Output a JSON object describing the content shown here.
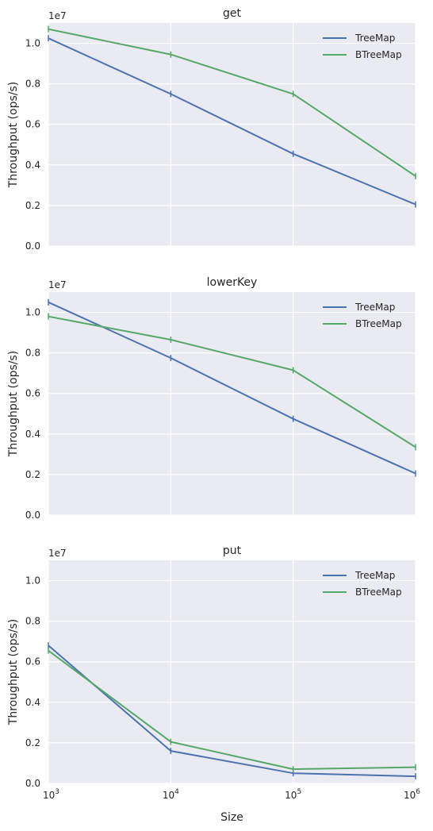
{
  "chart_data": [
    {
      "type": "line",
      "title": "get",
      "ylabel": "Throughput (ops/s)",
      "xlabel": "",
      "offset_label": "1e7",
      "x": [
        1000,
        10000,
        100000,
        1000000
      ],
      "xscale": "log",
      "ylim": [
        0,
        11000000
      ],
      "yticks": [
        0,
        2000000,
        4000000,
        6000000,
        8000000,
        10000000
      ],
      "ytick_labels": [
        "0.0",
        "0.2",
        "0.4",
        "0.6",
        "0.8",
        "1.0"
      ],
      "grid": true,
      "legend": "top-right",
      "series": [
        {
          "name": "TreeMap",
          "color": "#4c72b0",
          "values": [
            10250000,
            7500000,
            4550000,
            2050000
          ]
        },
        {
          "name": "BTreeMap",
          "color": "#55a868",
          "values": [
            10700000,
            9450000,
            7500000,
            3450000
          ]
        }
      ]
    },
    {
      "type": "line",
      "title": "lowerKey",
      "ylabel": "Throughput (ops/s)",
      "xlabel": "",
      "offset_label": "1e7",
      "x": [
        1000,
        10000,
        100000,
        1000000
      ],
      "xscale": "log",
      "ylim": [
        0,
        11000000
      ],
      "yticks": [
        0,
        2000000,
        4000000,
        6000000,
        8000000,
        10000000
      ],
      "ytick_labels": [
        "0.0",
        "0.2",
        "0.4",
        "0.6",
        "0.8",
        "1.0"
      ],
      "grid": true,
      "legend": "top-right",
      "series": [
        {
          "name": "TreeMap",
          "color": "#4c72b0",
          "values": [
            10500000,
            7750000,
            4750000,
            2050000
          ]
        },
        {
          "name": "BTreeMap",
          "color": "#55a868",
          "values": [
            9800000,
            8650000,
            7150000,
            3350000
          ]
        }
      ]
    },
    {
      "type": "line",
      "title": "put",
      "ylabel": "Throughput (ops/s)",
      "xlabel": "Size",
      "offset_label": "1e7",
      "x": [
        1000,
        10000,
        100000,
        1000000
      ],
      "xscale": "log",
      "xtick_labels": [
        {
          "base": "10",
          "exp": "3"
        },
        {
          "base": "10",
          "exp": "4"
        },
        {
          "base": "10",
          "exp": "5"
        },
        {
          "base": "10",
          "exp": "6"
        }
      ],
      "ylim": [
        0,
        11000000
      ],
      "yticks": [
        0,
        2000000,
        4000000,
        6000000,
        8000000,
        10000000
      ],
      "ytick_labels": [
        "0.0",
        "0.2",
        "0.4",
        "0.6",
        "0.8",
        "1.0"
      ],
      "grid": true,
      "legend": "top-right",
      "series": [
        {
          "name": "TreeMap",
          "color": "#4c72b0",
          "values": [
            6800000,
            1600000,
            500000,
            350000
          ]
        },
        {
          "name": "BTreeMap",
          "color": "#55a868",
          "values": [
            6550000,
            2050000,
            700000,
            800000
          ]
        }
      ]
    }
  ]
}
